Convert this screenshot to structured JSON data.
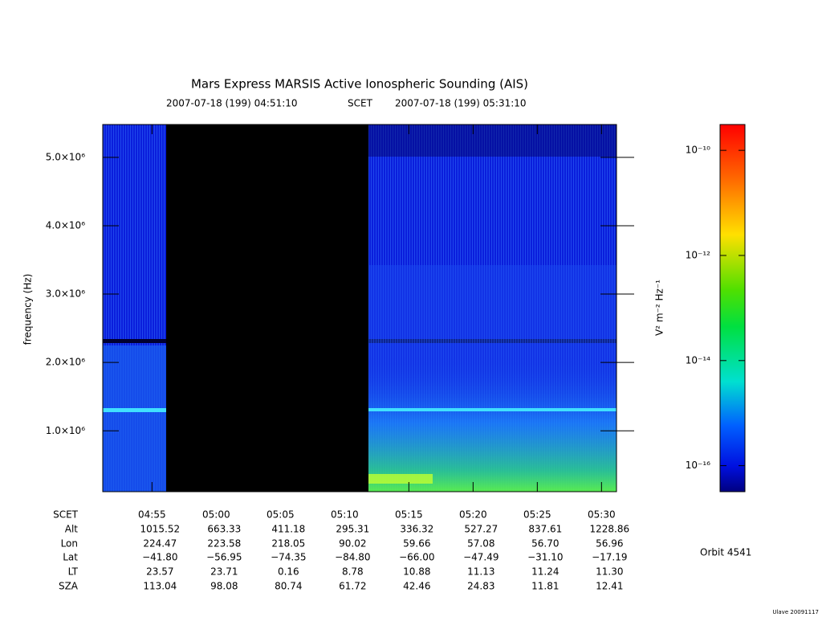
{
  "chart_data": {
    "type": "spectrogram",
    "title": "Mars Express MARSIS Active Ionospheric Sounding (AIS)",
    "start_time": "2007-07-18 (199) 04:51:10",
    "time_system": "SCET",
    "end_time": "2007-07-18 (199) 05:31:10",
    "y_label": "frequency (Hz)",
    "xlim": [
      "04:51:10",
      "05:31:10"
    ],
    "xticks": [
      "04:55",
      "05:00",
      "05:05",
      "05:10",
      "05:15",
      "05:20",
      "05:25",
      "05:30"
    ],
    "ylim": [
      110000,
      5480000
    ],
    "yticks": [
      {
        "value": 1000000,
        "label": "1.0×10⁶"
      },
      {
        "value": 2000000,
        "label": "2.0×10⁶"
      },
      {
        "value": 3000000,
        "label": "3.0×10⁶"
      },
      {
        "value": 4000000,
        "label": "4.0×10⁶"
      },
      {
        "value": 5000000,
        "label": "5.0×10⁶"
      }
    ],
    "colorbar": {
      "label": "V² m⁻² Hz⁻¹",
      "log_scale": true,
      "zlim": [
        3.2e-17,
        3.1e-10
      ],
      "ticks": [
        {
          "value": 1e-16,
          "label": "10⁻¹⁶"
        },
        {
          "value": 1e-14,
          "label": "10⁻¹⁴"
        },
        {
          "value": 1e-12,
          "label": "10⁻¹²"
        },
        {
          "value": 1e-10,
          "label": "10⁻¹⁰"
        }
      ]
    },
    "ephemeris": {
      "time_label": "SCET",
      "rows": [
        {
          "name": "Alt",
          "values": [
            "1015.52",
            "663.33",
            "411.18",
            "295.31",
            "336.32",
            "527.27",
            "837.61",
            "1228.86"
          ]
        },
        {
          "name": "Lon",
          "values": [
            "224.47",
            "223.58",
            "218.05",
            "90.02",
            "59.66",
            "57.08",
            "56.70",
            "56.96"
          ]
        },
        {
          "name": "Lat",
          "values": [
            "−41.80",
            "−56.95",
            "−74.35",
            "−84.80",
            "−66.00",
            "−47.49",
            "−31.10",
            "−17.19"
          ]
        },
        {
          "name": "LT",
          "values": [
            "23.57",
            "23.71",
            "0.16",
            "8.78",
            "10.88",
            "11.13",
            "11.24",
            "11.30"
          ]
        },
        {
          "name": "SZA",
          "values": [
            "113.04",
            "98.08",
            "80.74",
            "61.72",
            "42.46",
            "24.83",
            "11.81",
            "12.41"
          ]
        }
      ]
    },
    "orbit": "Orbit 4541",
    "footer": "Ulave 20091117"
  }
}
